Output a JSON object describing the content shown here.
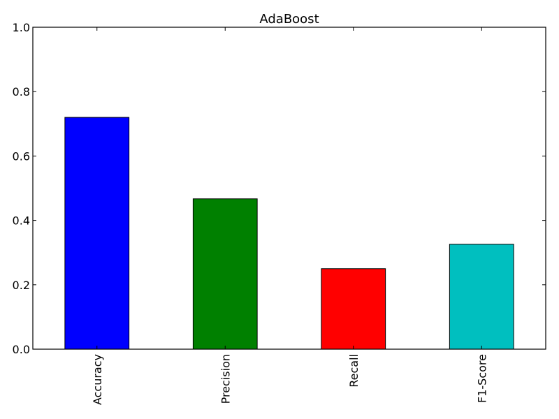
{
  "chart_data": {
    "type": "bar",
    "title": "AdaBoost",
    "xlabel": "",
    "ylabel": "",
    "categories": [
      "Accuracy",
      "Precision",
      "Recall",
      "F1-Score"
    ],
    "values": [
      0.72,
      0.467,
      0.25,
      0.326
    ],
    "colors": [
      "#0000ff",
      "#008000",
      "#ff0000",
      "#00bfbf"
    ],
    "ylim": [
      0,
      1.0
    ],
    "yticks": [
      0.0,
      0.2,
      0.4,
      0.6,
      0.8,
      1.0
    ],
    "ytick_labels": [
      "0.0",
      "0.2",
      "0.4",
      "0.6",
      "0.8",
      "1.0"
    ],
    "grid": false,
    "legend": "none",
    "xtick_rotation": "vertical"
  }
}
